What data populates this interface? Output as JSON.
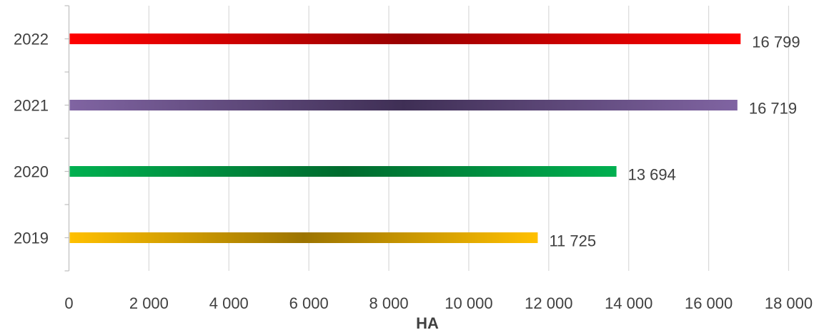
{
  "chart_data": {
    "type": "bar",
    "orientation": "horizontal",
    "title": "",
    "xlabel": "HA",
    "ylabel": "",
    "categories": [
      "2019",
      "2020",
      "2021",
      "2022"
    ],
    "values": [
      11725,
      13694,
      16719,
      16799
    ],
    "value_labels": [
      "11 725",
      "13 694",
      "16 719",
      "16 799"
    ],
    "xlim": [
      0,
      18000
    ],
    "xticks": [
      0,
      2000,
      4000,
      6000,
      8000,
      10000,
      12000,
      14000,
      16000,
      18000
    ],
    "xtick_labels": [
      "0",
      "2 000",
      "4 000",
      "6 000",
      "8 000",
      "10 000",
      "12 000",
      "14 000",
      "16 000",
      "18 000"
    ],
    "grid": "vertical",
    "legend": "none",
    "colors": [
      {
        "edge": "#FFC000",
        "mid": "#9C7400"
      },
      {
        "edge": "#00B050",
        "mid": "#006B2E"
      },
      {
        "edge": "#8064A2",
        "mid": "#3F2F55"
      },
      {
        "edge": "#FF0000",
        "mid": "#990000"
      }
    ]
  }
}
